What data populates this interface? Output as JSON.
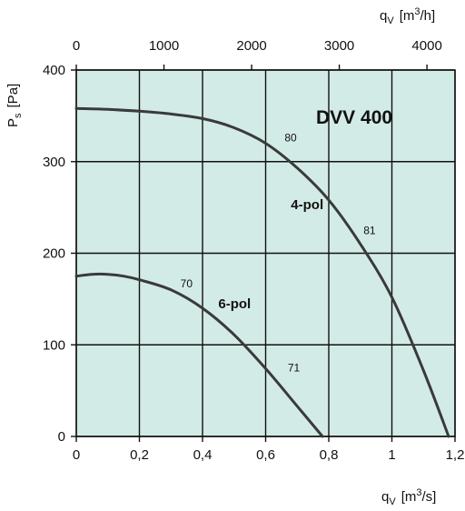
{
  "chart_data": {
    "type": "line",
    "title": "DVV 400",
    "x_bottom": {
      "label_main": "q",
      "label_sub": "V",
      "label_unit_pre": "[m",
      "label_unit_sup": "3",
      "label_unit_post": "/s]",
      "range": [
        0,
        1.2
      ],
      "ticks": [
        0,
        0.2,
        0.4,
        0.6,
        0.8,
        1,
        1.2
      ],
      "tick_labels": [
        "0",
        "0,2",
        "0,4",
        "0,6",
        "0,8",
        "1",
        "1,2"
      ]
    },
    "x_top": {
      "label_main": "q",
      "label_sub": "V",
      "label_unit_pre": "[m",
      "label_unit_sup": "3",
      "label_unit_post": "/h]",
      "range": [
        0,
        4320
      ],
      "ticks": [
        0,
        1000,
        2000,
        3000,
        4000
      ],
      "tick_labels": [
        "0",
        "1000",
        "2000",
        "3000",
        "4000"
      ]
    },
    "y": {
      "label_main": "P",
      "label_sub": "s",
      "label_unit": "[Pa]",
      "range": [
        0,
        400
      ],
      "ticks": [
        0,
        100,
        200,
        300,
        400
      ],
      "tick_labels": [
        "0",
        "100",
        "200",
        "300",
        "400"
      ]
    },
    "grid": true,
    "series": [
      {
        "name": "4-pol",
        "x": [
          0,
          0.1,
          0.2,
          0.3,
          0.4,
          0.5,
          0.6,
          0.7,
          0.8,
          0.9,
          1.0,
          1.1,
          1.18
        ],
        "y": [
          358,
          357,
          355,
          352,
          347,
          337,
          320,
          293,
          258,
          210,
          152,
          72,
          0
        ]
      },
      {
        "name": "6-pol",
        "x": [
          0,
          0.05,
          0.1,
          0.15,
          0.2,
          0.3,
          0.4,
          0.5,
          0.6,
          0.7,
          0.78
        ],
        "y": [
          175,
          177,
          177,
          175,
          171,
          160,
          140,
          111,
          74,
          33,
          0
        ]
      }
    ],
    "efficiency_labels": [
      {
        "text": "80",
        "x": 0.66,
        "y": 322
      },
      {
        "text": "81",
        "x": 0.91,
        "y": 221
      },
      {
        "text": "70",
        "x": 0.33,
        "y": 163
      },
      {
        "text": "71",
        "x": 0.67,
        "y": 71
      }
    ],
    "curve_labels": [
      {
        "text": "4-pol",
        "x": 0.68,
        "y": 248
      },
      {
        "text": "6-pol",
        "x": 0.45,
        "y": 140
      }
    ]
  }
}
